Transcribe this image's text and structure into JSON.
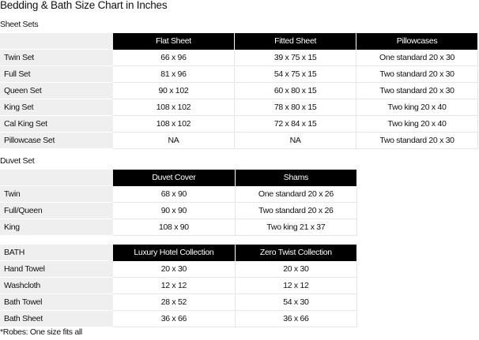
{
  "title": "Bedding & Bath Size Chart in Inches",
  "sheet_sets": {
    "heading": "Sheet Sets",
    "corner": "",
    "columns": [
      "Flat Sheet",
      "Fitted Sheet",
      "Pillowcases"
    ],
    "rows": [
      {
        "label": "Twin Set",
        "cells": [
          "66 x 96",
          "39 x 75 x 15",
          "One standard 20 x 30"
        ]
      },
      {
        "label": "Full Set",
        "cells": [
          "81 x 96",
          "54 x 75 x 15",
          "Two standard 20 x 30"
        ]
      },
      {
        "label": "Queen Set",
        "cells": [
          "90 x 102",
          "60 x 80 x 15",
          "Two standard 20 x 30"
        ]
      },
      {
        "label": "King Set",
        "cells": [
          "108 x 102",
          "78 x 80 x 15",
          "Two king 20 x 40"
        ]
      },
      {
        "label": "Cal King Set",
        "cells": [
          "108 x 102",
          "72 x 84 x 15",
          "Two king 20 x 40"
        ]
      },
      {
        "label": "Pillowcase Set",
        "cells": [
          "NA",
          "NA",
          "Two standard 20 x 30"
        ]
      }
    ]
  },
  "duvet_set": {
    "heading": "Duvet Set",
    "corner": "",
    "columns": [
      "Duvet Cover",
      "Shams"
    ],
    "rows": [
      {
        "label": "Twin",
        "cells": [
          "68 x 90",
          "One standard 20 x 26"
        ]
      },
      {
        "label": "Full/Queen",
        "cells": [
          "90 x 90",
          "Two standard 20 x 26"
        ]
      },
      {
        "label": "King",
        "cells": [
          "108 x 90",
          "Two king 21 x 37"
        ]
      }
    ]
  },
  "bath": {
    "corner": "BATH",
    "columns": [
      "Luxury Hotel Collection",
      "Zero Twist Collection"
    ],
    "rows": [
      {
        "label": "Hand Towel",
        "cells": [
          "20 x 30",
          "20 x 30"
        ]
      },
      {
        "label": "Washcloth",
        "cells": [
          "12 x 12",
          "12 x 12"
        ]
      },
      {
        "label": "Bath Towel",
        "cells": [
          "28 x 52",
          "54 x 30"
        ]
      },
      {
        "label": "Bath Sheet",
        "cells": [
          "36 x 66",
          "36 x 66"
        ]
      }
    ]
  },
  "footnote": "*Robes: One size fits all"
}
